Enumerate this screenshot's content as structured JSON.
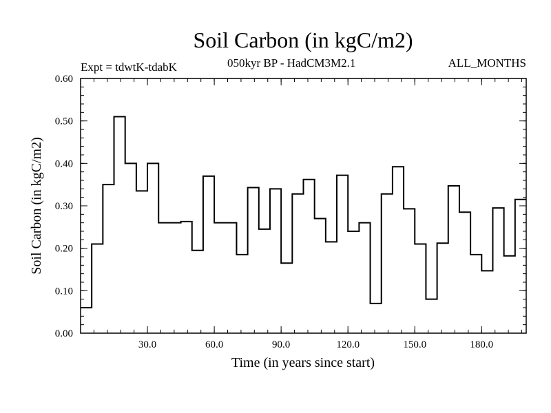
{
  "chart_data": {
    "type": "line",
    "style": "step",
    "title": "Soil Carbon (in kgC/m2)",
    "subtitle": "050kyr BP - HadCM3M2.1",
    "experiment": "Expt = tdwtK-tdabK",
    "period": "ALL_MONTHS",
    "xlabel": "Time (in years since start)",
    "ylabel": "Soil Carbon (in kgC/m2)",
    "xlim": [
      0,
      200
    ],
    "ylim": [
      0,
      0.6
    ],
    "x_ticks": [
      30,
      60,
      90,
      120,
      150,
      180
    ],
    "x_tick_labels": [
      "30.0",
      "60.0",
      "90.0",
      "120.0",
      "150.0",
      "180.0"
    ],
    "y_ticks": [
      0,
      0.1,
      0.2,
      0.3,
      0.4,
      0.5,
      0.6
    ],
    "y_tick_labels": [
      "0.00",
      "0.10",
      "0.20",
      "0.30",
      "0.40",
      "0.50",
      "0.60"
    ],
    "series": [
      {
        "name": "Soil Carbon",
        "x": [
          0,
          5,
          10,
          15,
          20,
          25,
          30,
          35,
          40,
          45,
          50,
          55,
          60,
          65,
          70,
          75,
          80,
          85,
          90,
          95,
          100,
          105,
          110,
          115,
          120,
          125,
          130,
          135,
          140,
          145,
          150,
          155,
          160,
          165,
          170,
          175,
          180,
          185,
          190,
          195
        ],
        "values": [
          0.06,
          0.21,
          0.35,
          0.51,
          0.4,
          0.335,
          0.4,
          0.26,
          0.26,
          0.263,
          0.195,
          0.37,
          0.26,
          0.26,
          0.185,
          0.343,
          0.245,
          0.34,
          0.165,
          0.328,
          0.362,
          0.27,
          0.215,
          0.372,
          0.24,
          0.26,
          0.07,
          0.328,
          0.392,
          0.293,
          0.21,
          0.08,
          0.212,
          0.347,
          0.285,
          0.185,
          0.147,
          0.295,
          0.182,
          0.315
        ]
      }
    ]
  }
}
